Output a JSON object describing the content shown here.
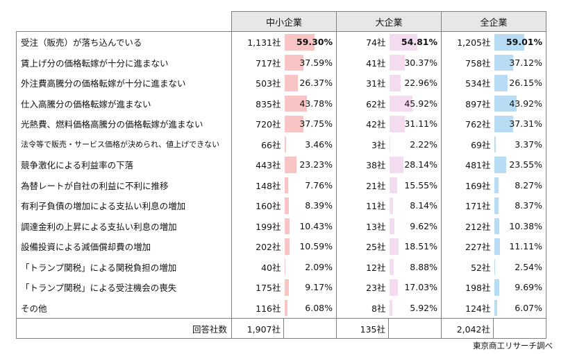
{
  "headers": [
    "中小企業",
    "大企業",
    "全企業"
  ],
  "colors": {
    "sme": "#f8c4c4",
    "large": "#f4dcf0",
    "all": "#b7dcf4"
  },
  "pct_scale_max": 60,
  "rows": [
    {
      "label": "受注（販売）が落ち込んでいる",
      "sme_n": "1,131社",
      "sme_p": "59.30%",
      "large_n": "74社",
      "large_p": "54.81%",
      "all_n": "1,205社",
      "all_p": "59.01%",
      "bold": true
    },
    {
      "label": "賃上げ分の価格転嫁が十分に進まない",
      "sme_n": "717社",
      "sme_p": "37.59%",
      "large_n": "41社",
      "large_p": "30.37%",
      "all_n": "758社",
      "all_p": "37.12%"
    },
    {
      "label": "外注費高騰分の価格転嫁が十分に進まない",
      "sme_n": "503社",
      "sme_p": "26.37%",
      "large_n": "31社",
      "large_p": "22.96%",
      "all_n": "534社",
      "all_p": "26.15%"
    },
    {
      "label": "仕入高騰分の価格転嫁が進まない",
      "sme_n": "835社",
      "sme_p": "43.78%",
      "large_n": "62社",
      "large_p": "45.92%",
      "all_n": "897社",
      "all_p": "43.92%"
    },
    {
      "label": "光熱費、燃料価格高騰分の価格転嫁が進まない",
      "sme_n": "720社",
      "sme_p": "37.75%",
      "large_n": "42社",
      "large_p": "31.11%",
      "all_n": "762社",
      "all_p": "37.31%"
    },
    {
      "label": "法令等で販売・サービス価格が決められ、値上げできない",
      "sme_n": "66社",
      "sme_p": "3.46%",
      "large_n": "3社",
      "large_p": "2.22%",
      "all_n": "69社",
      "all_p": "3.37%",
      "small": true
    },
    {
      "label": "競争激化による利益率の下落",
      "sme_n": "443社",
      "sme_p": "23.23%",
      "large_n": "38社",
      "large_p": "28.14%",
      "all_n": "481社",
      "all_p": "23.55%"
    },
    {
      "label": "為替レートが自社の利益に不利に推移",
      "sme_n": "148社",
      "sme_p": "7.76%",
      "large_n": "21社",
      "large_p": "15.55%",
      "all_n": "169社",
      "all_p": "8.27%"
    },
    {
      "label": "有利子負債の増加による支払い利息の増加",
      "sme_n": "160社",
      "sme_p": "8.39%",
      "large_n": "11社",
      "large_p": "8.14%",
      "all_n": "171社",
      "all_p": "8.37%"
    },
    {
      "label": "調達金利の上昇による支払い利息の増加",
      "sme_n": "199社",
      "sme_p": "10.43%",
      "large_n": "13社",
      "large_p": "9.62%",
      "all_n": "212社",
      "all_p": "10.38%"
    },
    {
      "label": "設備投資による減価償却費の増加",
      "sme_n": "202社",
      "sme_p": "10.59%",
      "large_n": "25社",
      "large_p": "18.51%",
      "all_n": "227社",
      "all_p": "11.11%"
    },
    {
      "label": "「トランプ関税」による関税負担の増加",
      "sme_n": "40社",
      "sme_p": "2.09%",
      "large_n": "12社",
      "large_p": "8.88%",
      "all_n": "52社",
      "all_p": "2.54%"
    },
    {
      "label": "「トランプ関税」による受注機会の喪失",
      "sme_n": "175社",
      "sme_p": "9.17%",
      "large_n": "23社",
      "large_p": "17.03%",
      "all_n": "198社",
      "all_p": "9.69%"
    },
    {
      "label": "その他",
      "sme_n": "116社",
      "sme_p": "6.08%",
      "large_n": "8社",
      "large_p": "5.92%",
      "all_n": "124社",
      "all_p": "6.07%"
    }
  ],
  "total": {
    "label": "回答社数",
    "sme": "1,907社",
    "large": "135社",
    "all": "2,042社"
  },
  "source": "東京商工リサーチ調べ"
}
